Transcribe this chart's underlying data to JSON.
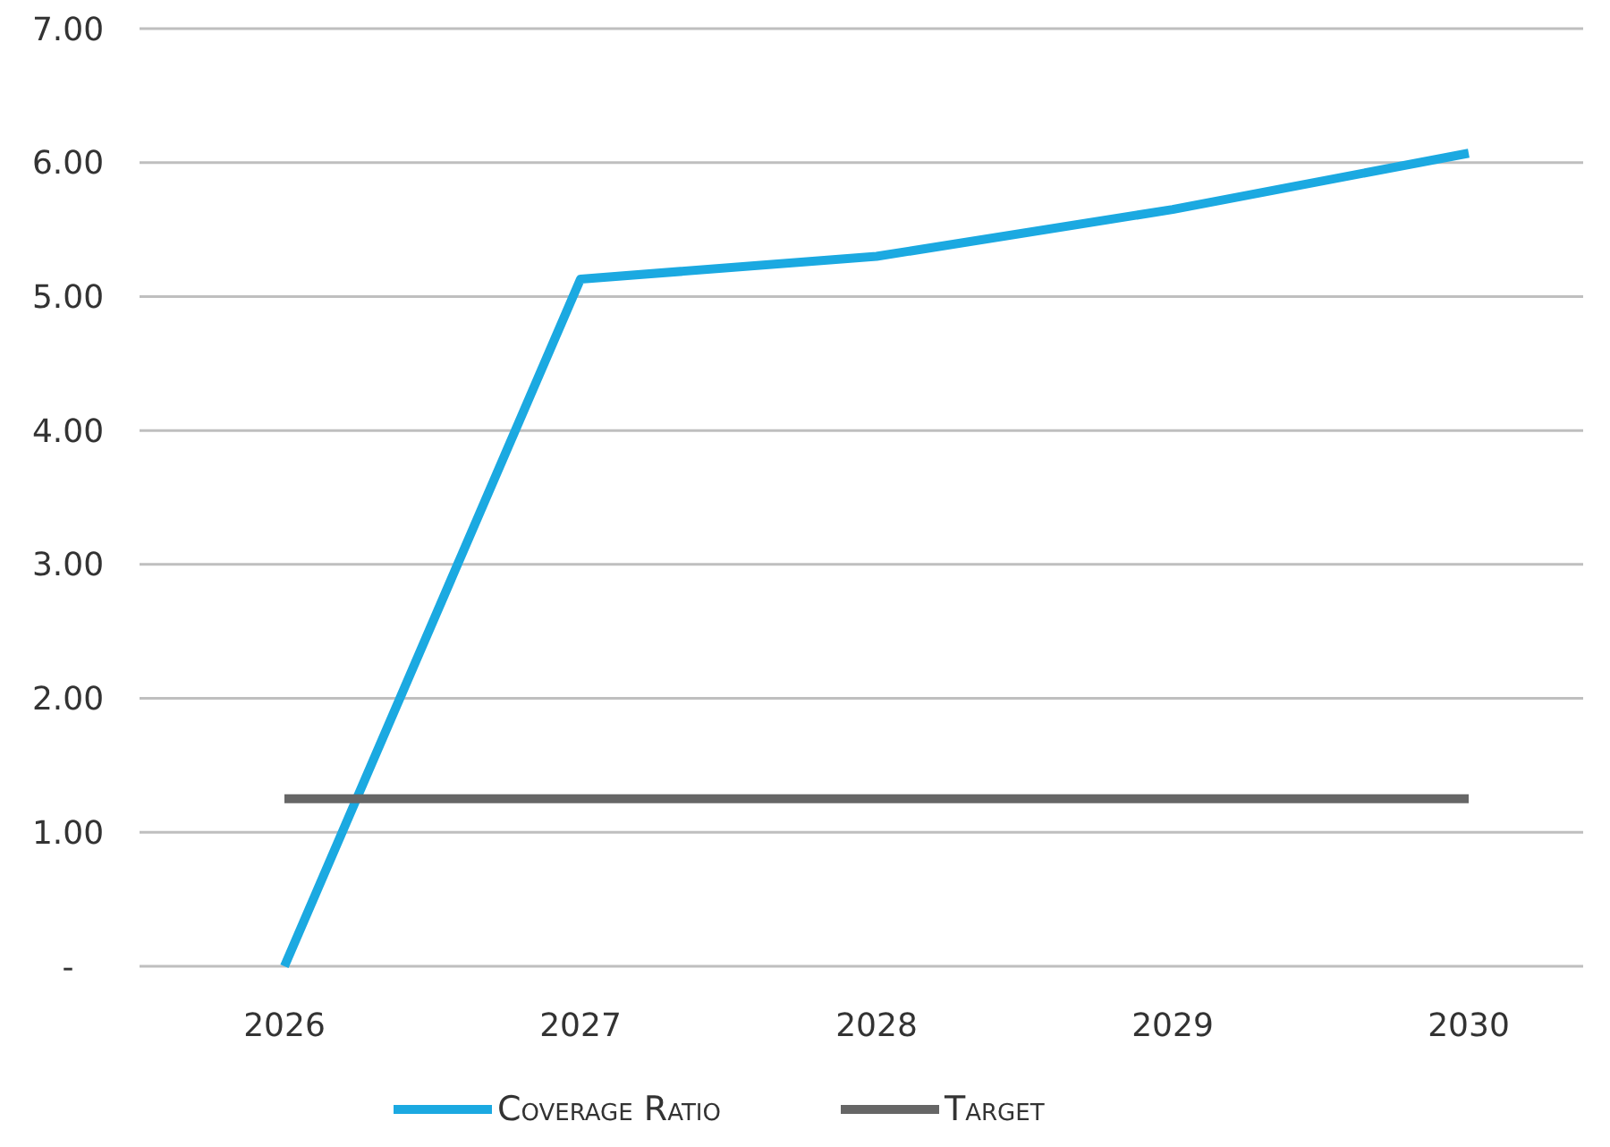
{
  "chart_data": {
    "type": "line",
    "categories": [
      "2026",
      "2027",
      "2028",
      "2029",
      "2030"
    ],
    "series": [
      {
        "name": "Coverage Ratio",
        "color": "#1ba9e1",
        "values": [
          0,
          5.13,
          5.3,
          5.65,
          6.07
        ]
      },
      {
        "name": "Target",
        "color": "#666666",
        "values": [
          1.25,
          1.25,
          1.25,
          1.25,
          1.25
        ]
      }
    ],
    "ylim": [
      0,
      7
    ],
    "yticks": [
      {
        "value": 0,
        "label": "-"
      },
      {
        "value": 1,
        "label": "1.00"
      },
      {
        "value": 2,
        "label": "2.00"
      },
      {
        "value": 3,
        "label": "3.00"
      },
      {
        "value": 4,
        "label": "4.00"
      },
      {
        "value": 5,
        "label": "5.00"
      },
      {
        "value": 6,
        "label": "6.00"
      },
      {
        "value": 7,
        "label": "7.00"
      }
    ],
    "grid": "y",
    "legend": "bottom",
    "marker": "none",
    "line_style": "solid"
  }
}
